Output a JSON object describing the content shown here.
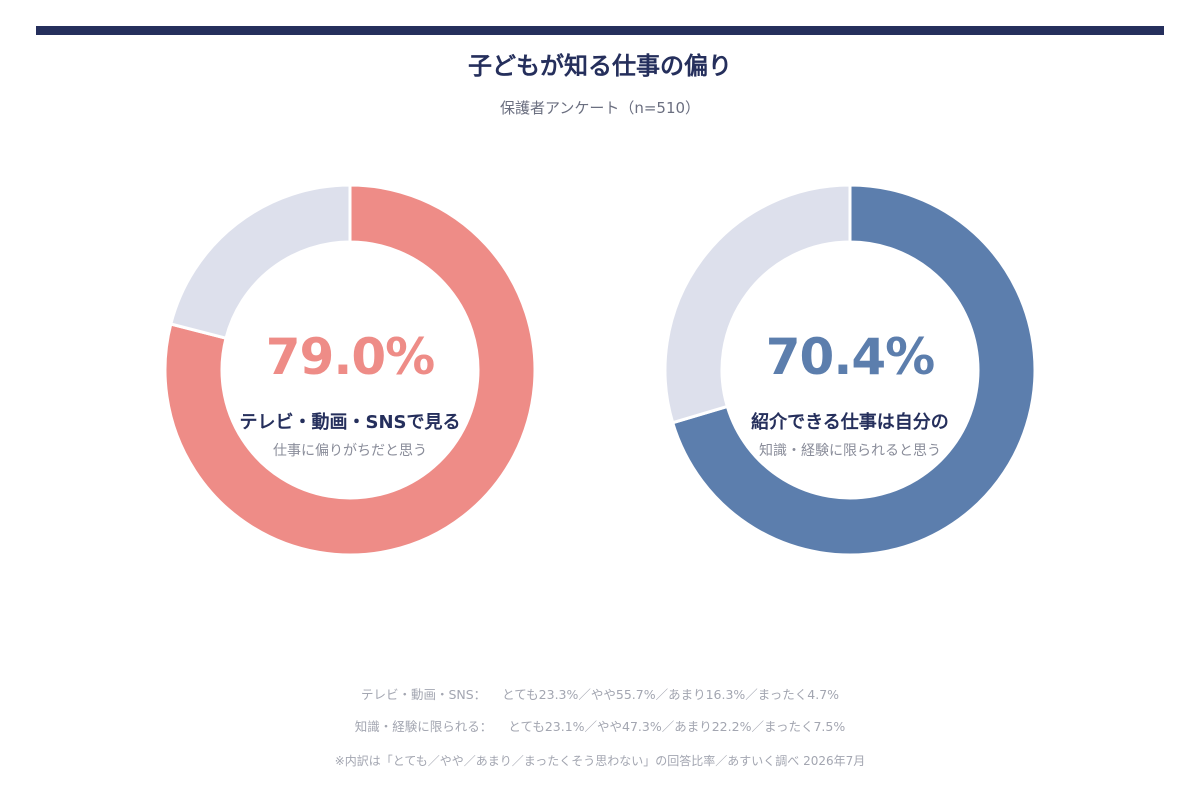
{
  "title": "子どもが知る仕事の偏り",
  "subtitle": "保護者アンケート（n=510）",
  "chart_data": [
    {
      "type": "pie",
      "value": 79.0,
      "value_label": "79.0%",
      "label": "テレビ・動画・SNSで見る",
      "sublabel": "仕事に偏りがちだと思う",
      "color": "#ee8c87",
      "remainder_color": "#dde0ec"
    },
    {
      "type": "pie",
      "value": 70.4,
      "value_label": "70.4%",
      "label": "紹介できる仕事は自分の",
      "sublabel": "知識・経験に限られると思う",
      "color": "#5c7ead",
      "remainder_color": "#dde0ec"
    }
  ],
  "breakdown": [
    {
      "label": "テレビ・動画・SNS：",
      "values": "とても23.3%／やや55.7%／あまり16.3%／まったく4.7%"
    },
    {
      "label": "知識・経験に限られる：",
      "values": "とても23.1%／やや47.3%／あまり22.2%／まったく7.5%"
    }
  ],
  "footnote": "※内訳は「とても／やや／あまり／まったくそう思わない」の回答比率／あすいく調べ 2026年7月"
}
